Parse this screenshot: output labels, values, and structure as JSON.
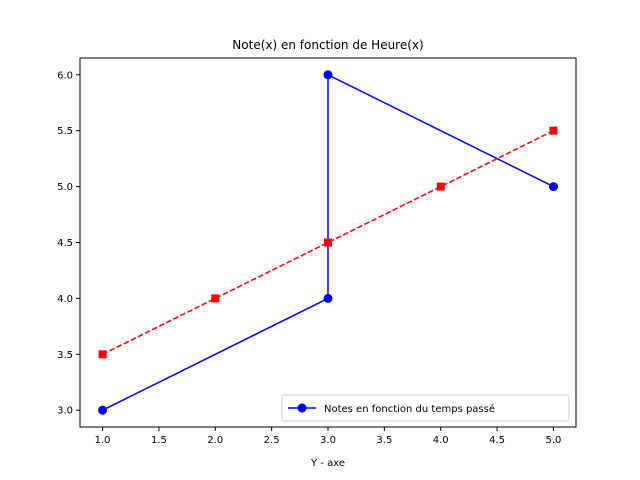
{
  "chart_data": {
    "type": "line",
    "title": "Note(x) en fonction de Heure(x)",
    "xlabel": "Y - axe",
    "ylabel": "",
    "xlim": [
      0.8,
      5.2
    ],
    "ylim": [
      2.85,
      6.15
    ],
    "xticks": [
      "1.0",
      "1.5",
      "2.0",
      "2.5",
      "3.0",
      "3.5",
      "4.0",
      "4.5",
      "5.0"
    ],
    "yticks": [
      "3.0",
      "3.5",
      "4.0",
      "4.5",
      "5.0",
      "5.5",
      "6.0"
    ],
    "grid": false,
    "legend_position": "lower-right",
    "series": [
      {
        "name": "Notes en fonction du temps passé",
        "color": "#0000ff",
        "line_style": "solid",
        "marker": "circle",
        "x": [
          1,
          3,
          3,
          5
        ],
        "y": [
          3,
          4,
          6,
          5
        ]
      },
      {
        "color": "#ff0000",
        "line_style": "dashed",
        "marker": "square",
        "x": [
          1,
          2,
          3,
          4,
          5
        ],
        "y": [
          3.5,
          4,
          4.5,
          5,
          5.5
        ]
      }
    ]
  }
}
